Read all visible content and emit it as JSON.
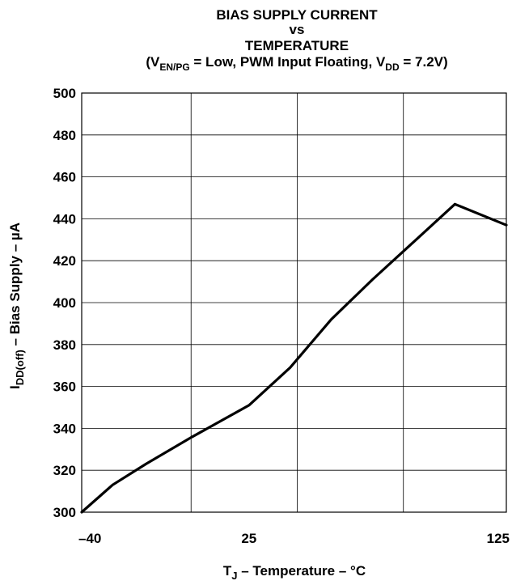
{
  "chart_data": {
    "type": "line",
    "title": {
      "line1": "BIAS SUPPLY CURRENT",
      "line2": "vs",
      "line3": "TEMPERATURE",
      "cond_open": "(V",
      "cond_en_sub": "EN/PG",
      "cond_mid": " = Low, PWM Input Floating, V",
      "cond_dd_sub": "DD",
      "cond_end": " = 7.2V)"
    },
    "xlabel": {
      "prefix": "T",
      "sub": "J",
      "suffix": " – Temperature – °C"
    },
    "ylabel": {
      "prefix": "I",
      "sub": "DD(off)",
      "suffix": " – Bias Supply – µA"
    },
    "xlim": [
      -40,
      125
    ],
    "ylim": [
      300,
      500
    ],
    "x_ticks": [
      -40,
      25,
      125
    ],
    "x_tick_labels": [
      "–40",
      "25",
      "125"
    ],
    "x_gridlines": [
      -40,
      2.5,
      43.75,
      85,
      125
    ],
    "y_ticks": [
      300,
      320,
      340,
      360,
      380,
      400,
      420,
      440,
      460,
      480,
      500
    ],
    "y_tick_labels": [
      "300",
      "320",
      "340",
      "360",
      "380",
      "400",
      "420",
      "440",
      "460",
      "480",
      "500"
    ],
    "grid": true,
    "series": [
      {
        "color": "#000000",
        "x": [
          -40,
          -28,
          -15,
          3,
          25,
          41,
          57,
          73,
          89,
          105,
          125
        ],
        "y": [
          300,
          313,
          323,
          336,
          351,
          369,
          392,
          411,
          429,
          447,
          437
        ]
      }
    ]
  }
}
